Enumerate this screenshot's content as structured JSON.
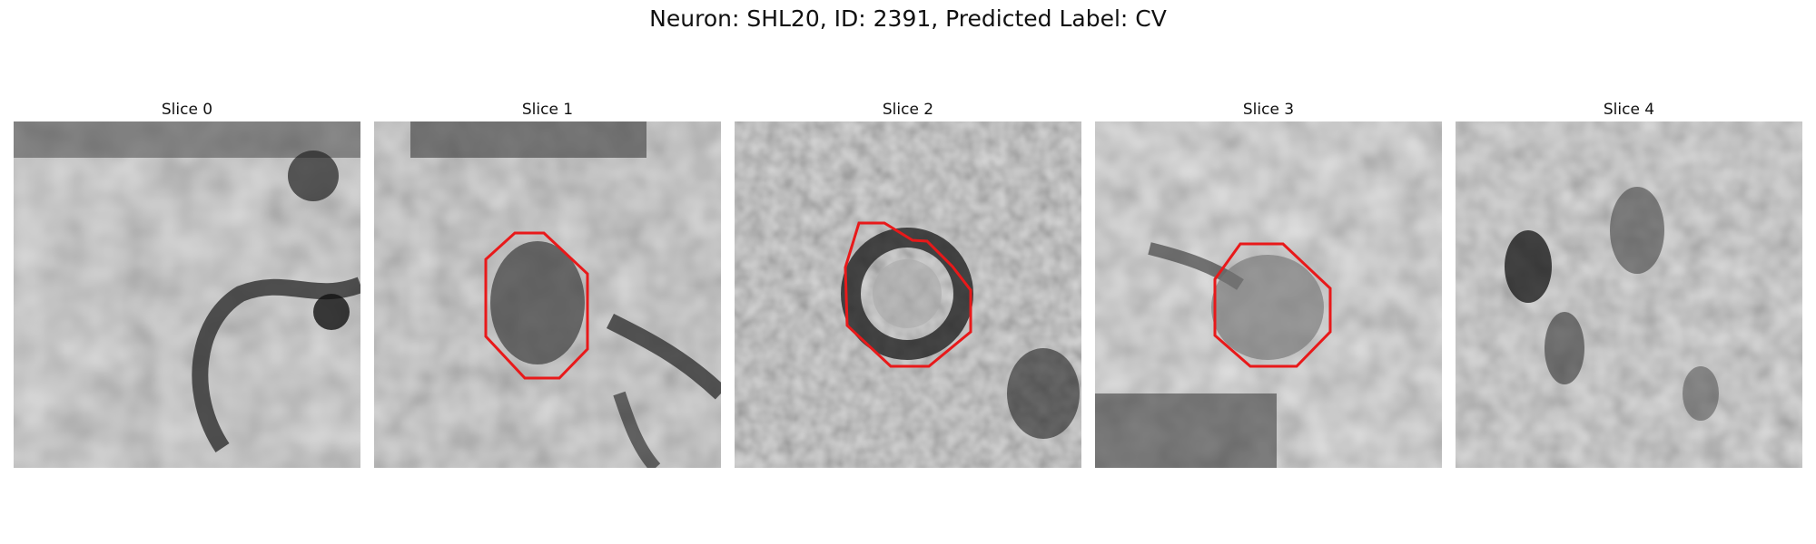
{
  "figure": {
    "title": "Neuron: SHL20, ID: 2391, Predicted Label: CV"
  },
  "panels": [
    {
      "title": "Slice 0",
      "has_outline": false
    },
    {
      "title": "Slice 1",
      "has_outline": true
    },
    {
      "title": "Slice 2",
      "has_outline": true
    },
    {
      "title": "Slice 3",
      "has_outline": true
    },
    {
      "title": "Slice 4",
      "has_outline": false
    }
  ],
  "colors": {
    "outline": "#e8191a",
    "background": "#ffffff"
  }
}
